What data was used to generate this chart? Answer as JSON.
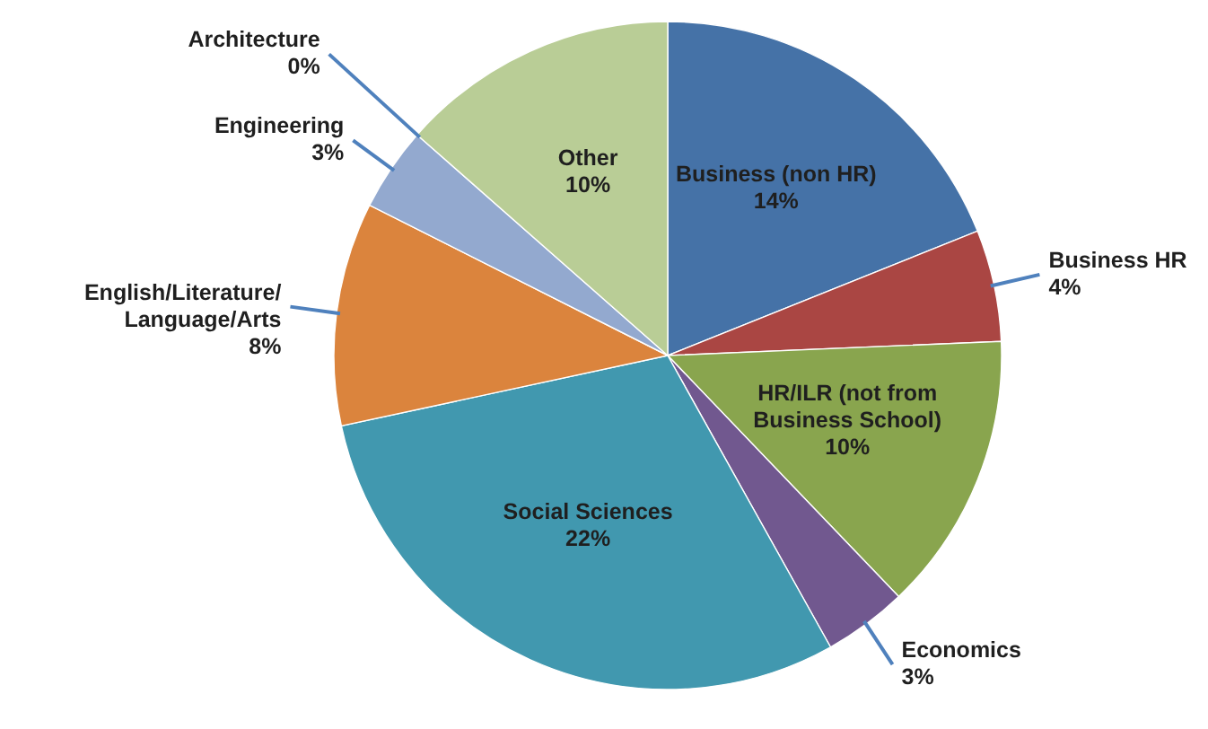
{
  "chart_data": {
    "type": "pie",
    "categories": [
      "Business (non HR)",
      "Business HR",
      "HR/ILR (not from Business School)",
      "Economics",
      "Social Sciences",
      "English/Literature/Language/Arts",
      "Engineering",
      "Architecture",
      "Other"
    ],
    "values": [
      14,
      4,
      10,
      3,
      22,
      8,
      3,
      0,
      10
    ],
    "value_labels": [
      "14%",
      "4%",
      "10%",
      "3%",
      "22%",
      "8%",
      "3%",
      "0%",
      "10%"
    ],
    "colors": [
      "#4572a7",
      "#aa4643",
      "#89a54e",
      "#71588f",
      "#4198af",
      "#db843d",
      "#93a9cf",
      null,
      "#b9cd96"
    ]
  }
}
